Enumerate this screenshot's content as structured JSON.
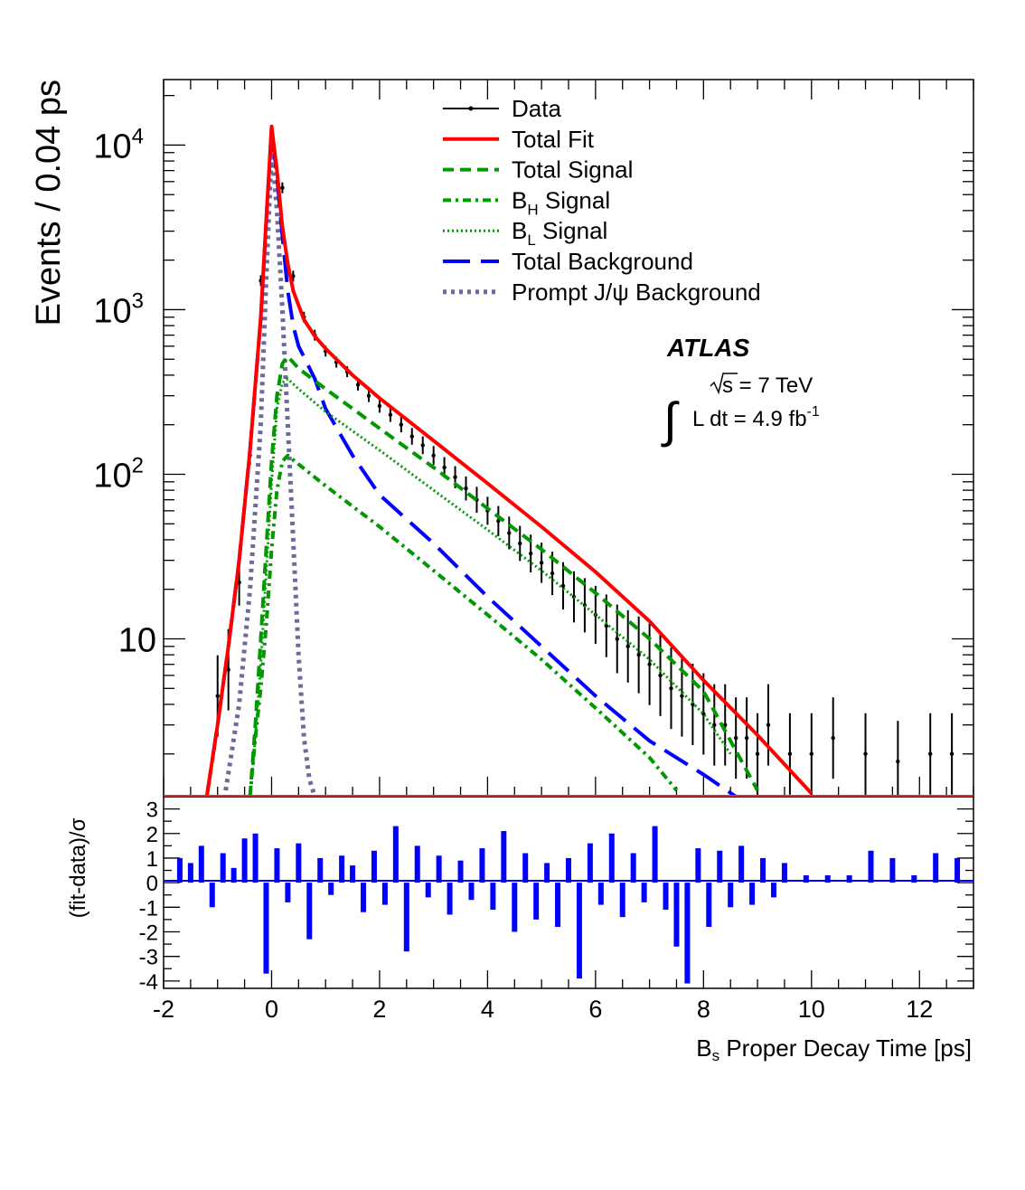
{
  "chart_data": [
    {
      "type": "line",
      "panel": "main",
      "ylabel": "Events / 0.04 ps",
      "xlim": [
        -2,
        13
      ],
      "ylim": [
        1.1,
        25000
      ],
      "yscale": "log",
      "y_tick_labels": [
        {
          "value": 10,
          "base": "10",
          "exp": ""
        },
        {
          "value": 100,
          "base": "10",
          "exp": "2"
        },
        {
          "value": 1000,
          "base": "10",
          "exp": "3"
        },
        {
          "value": 10000,
          "base": "10",
          "exp": "4"
        }
      ],
      "legend_position": "top-center",
      "series": [
        {
          "name": "Data",
          "color": "#000000",
          "style": "points",
          "x": [
            -1.0,
            -0.8,
            -0.6,
            -0.4,
            -0.2,
            0.0,
            0.2,
            0.4,
            0.6,
            0.8,
            1.0,
            1.2,
            1.4,
            1.6,
            1.8,
            2.0,
            2.2,
            2.4,
            2.6,
            2.8,
            3.0,
            3.2,
            3.4,
            3.6,
            3.8,
            4.0,
            4.2,
            4.4,
            4.6,
            4.8,
            5.0,
            5.2,
            5.4,
            5.6,
            5.8,
            6.0,
            6.2,
            6.4,
            6.6,
            6.8,
            7.0,
            7.2,
            7.4,
            7.6,
            7.8,
            8.0,
            8.2,
            8.4,
            8.6,
            8.8,
            9.0,
            9.2,
            9.6,
            10.0,
            10.4,
            11.0,
            11.6,
            12.2,
            12.6
          ],
          "y": [
            4.5,
            6.5,
            22,
            130,
            1500,
            12000,
            5500,
            1600,
            900,
            700,
            560,
            480,
            420,
            350,
            300,
            260,
            230,
            200,
            170,
            150,
            130,
            110,
            96,
            82,
            70,
            60,
            52,
            44,
            38,
            33,
            29,
            25,
            21,
            18,
            16,
            14,
            12,
            10,
            9,
            8,
            7,
            6,
            5,
            4.5,
            4,
            3.5,
            3,
            3,
            2.5,
            2.5,
            2,
            3,
            2,
            2,
            2.5,
            2,
            1.8,
            2,
            2
          ]
        },
        {
          "name": "Total Fit",
          "color": "#ff0000",
          "style": "solid",
          "x": [
            -1.2,
            -1.0,
            -0.8,
            -0.6,
            -0.4,
            -0.2,
            -0.1,
            0.0,
            0.1,
            0.2,
            0.3,
            0.4,
            0.6,
            0.8,
            1.0,
            1.5,
            2.0,
            3.0,
            4.0,
            5.0,
            6.0,
            7.0,
            8.0,
            9.0,
            10.0
          ],
          "y": [
            1.1,
            3,
            9,
            30,
            140,
            900,
            3500,
            13000,
            7000,
            3200,
            1900,
            1300,
            870,
            690,
            580,
            400,
            290,
            160,
            88,
            48,
            25.5,
            12.8,
            5.6,
            2.6,
            1.15
          ]
        },
        {
          "name": "Total Signal",
          "color": "#009900",
          "style": "dashed",
          "x": [
            -0.4,
            -0.3,
            -0.2,
            -0.1,
            0.0,
            0.1,
            0.2,
            0.3,
            0.5,
            1.0,
            2.0,
            3.0,
            4.0,
            5.0,
            6.0,
            7.0,
            8.0,
            9.0
          ],
          "y": [
            1.1,
            3,
            10,
            35,
            120,
            300,
            470,
            520,
            440,
            330,
            190,
            110,
            62,
            35,
            19,
            10,
            4.8,
            1.2
          ]
        },
        {
          "name": "B_H Signal",
          "color": "#009900",
          "style": "dash-dot",
          "x": [
            -0.4,
            -0.3,
            -0.2,
            -0.1,
            0.0,
            0.1,
            0.2,
            0.3,
            0.5,
            1.0,
            2.0,
            3.0,
            4.0,
            5.0,
            6.0,
            7.0,
            7.5
          ],
          "y": [
            1.1,
            2.5,
            5,
            12,
            35,
            80,
            120,
            130,
            115,
            85,
            48,
            26,
            14,
            7.5,
            3.8,
            1.9,
            1.2
          ]
        },
        {
          "name": "B_L Signal",
          "color": "#009900",
          "style": "dotted",
          "x": [
            -0.4,
            -0.3,
            -0.2,
            -0.1,
            0.0,
            0.1,
            0.2,
            0.3,
            0.5,
            1.0,
            2.0,
            3.0,
            4.0,
            5.0,
            6.0,
            7.0,
            8.0,
            8.5
          ],
          "y": [
            1.1,
            2.5,
            7,
            25,
            90,
            250,
            360,
            380,
            330,
            240,
            140,
            80,
            46,
            26,
            14,
            7.5,
            3.5,
            2
          ]
        },
        {
          "name": "Total Background",
          "color": "#0000ff",
          "style": "long-dash",
          "x": [
            -1.2,
            -1.0,
            -0.8,
            -0.6,
            -0.4,
            -0.2,
            -0.1,
            0.0,
            0.1,
            0.2,
            0.3,
            0.4,
            0.5,
            0.8,
            1.0,
            1.5,
            2.0,
            3.0,
            4.0,
            5.0,
            6.0,
            7.0,
            8.0,
            8.6
          ],
          "y": [
            1.1,
            3,
            9,
            30,
            140,
            880,
            3400,
            12500,
            6500,
            2800,
            1300,
            800,
            600,
            380,
            250,
            130,
            75,
            38,
            18,
            9,
            4.5,
            2.4,
            1.5,
            1.1
          ]
        },
        {
          "name": "Prompt J/ψ Background",
          "color": "#6b6b9c",
          "style": "dotted-thick",
          "x": [
            -0.85,
            -0.6,
            -0.4,
            -0.2,
            -0.1,
            0.0,
            0.1,
            0.2,
            0.3,
            0.4,
            0.5,
            0.6,
            0.7,
            0.8
          ],
          "y": [
            1.2,
            4,
            20,
            200,
            1500,
            9500,
            4000,
            1000,
            200,
            40,
            8,
            2.5,
            1.4,
            1.1
          ]
        }
      ]
    },
    {
      "type": "bar",
      "panel": "residuals",
      "ylabel": "(fit-data)/σ",
      "xlabel": "Bs Proper Decay Time [ps]",
      "xlim": [
        -2,
        13
      ],
      "ylim": [
        -4.3,
        3.5
      ],
      "x_ticks": [
        -2,
        0,
        2,
        4,
        6,
        8,
        10,
        12
      ],
      "y_ticks": [
        -4,
        -3,
        -2,
        -1,
        0,
        1,
        2,
        3
      ],
      "series": [
        {
          "name": "",
          "color": "#0000ff",
          "x": [
            -1.7,
            -1.5,
            -1.3,
            -1.1,
            -0.9,
            -0.7,
            -0.5,
            -0.3,
            -0.1,
            0.1,
            0.3,
            0.5,
            0.7,
            0.9,
            1.1,
            1.3,
            1.5,
            1.7,
            1.9,
            2.1,
            2.3,
            2.5,
            2.7,
            2.9,
            3.1,
            3.3,
            3.5,
            3.7,
            3.9,
            4.1,
            4.3,
            4.5,
            4.7,
            4.9,
            5.1,
            5.3,
            5.5,
            5.7,
            5.9,
            6.1,
            6.3,
            6.5,
            6.7,
            6.9,
            7.1,
            7.3,
            7.5,
            7.7,
            7.9,
            8.1,
            8.3,
            8.5,
            8.7,
            8.9,
            9.1,
            9.3,
            9.5,
            9.9,
            10.3,
            10.7,
            11.1,
            11.5,
            11.9,
            12.3,
            12.7
          ],
          "y": [
            1.0,
            0.8,
            1.5,
            -1.0,
            1.2,
            0.6,
            1.8,
            2.0,
            -3.7,
            1.4,
            -0.8,
            1.6,
            -2.3,
            1.0,
            -0.5,
            1.1,
            0.7,
            -1.2,
            1.3,
            -0.9,
            2.3,
            -2.8,
            1.5,
            -0.6,
            1.1,
            -1.3,
            0.9,
            -0.7,
            1.4,
            -1.1,
            2.1,
            -2.0,
            1.2,
            -1.5,
            0.8,
            -1.8,
            1.0,
            -3.9,
            1.6,
            -0.9,
            2.0,
            -1.4,
            1.2,
            -0.8,
            2.3,
            -1.1,
            -2.6,
            -4.1,
            1.4,
            -1.8,
            1.3,
            -1.0,
            1.5,
            -0.9,
            1.0,
            -0.6,
            0.8,
            0.3,
            0.3,
            0.3,
            1.3,
            1.0,
            0.3,
            1.2,
            1.0
          ]
        }
      ]
    }
  ],
  "legend": {
    "entries": [
      {
        "label": "Data",
        "sub": "",
        "suffix": "",
        "color": "#000000",
        "style": "points"
      },
      {
        "label": "Total Fit",
        "sub": "",
        "suffix": "",
        "color": "#ff0000",
        "style": "solid"
      },
      {
        "label": "Total Signal",
        "sub": "",
        "suffix": "",
        "color": "#009900",
        "style": "dashed"
      },
      {
        "label": "B",
        "sub": "H",
        "suffix": " Signal",
        "color": "#009900",
        "style": "dash-dot"
      },
      {
        "label": "B",
        "sub": "L",
        "suffix": " Signal",
        "color": "#009900",
        "style": "dotted"
      },
      {
        "label": "Total Background",
        "sub": "",
        "suffix": "",
        "color": "#0000ff",
        "style": "long-dash"
      },
      {
        "label": "Prompt J/ψ Background",
        "sub": "",
        "suffix": "",
        "color": "#6b6b9c",
        "style": "dotted-thick"
      }
    ]
  },
  "annotation": {
    "experiment": "ATLAS",
    "energy_prefix": "s",
    "energy_suffix": " = 7 TeV",
    "integral_symbol": "∫",
    "lumi_text": "L dt = 4.9 fb",
    "lumi_exp": "-1"
  },
  "xlabel_parts": {
    "main": "B",
    "sub": "s",
    "rest": " Proper Decay Time [ps]"
  }
}
